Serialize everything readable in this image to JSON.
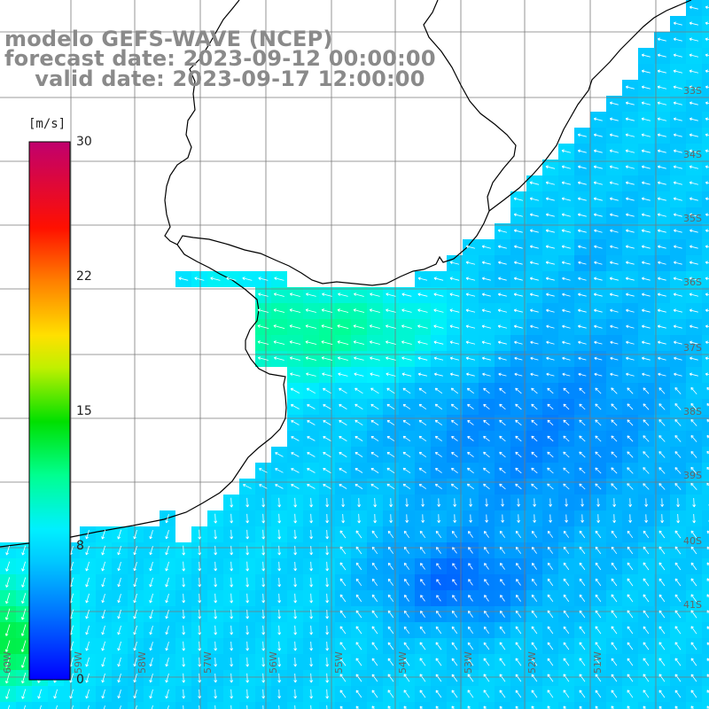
{
  "title": {
    "line1": "modelo GEFS-WAVE (NCEP)",
    "line2": "forecast date: 2023-09-12 00:00:00",
    "line3": "    valid date: 2023-09-17 12:00:00"
  },
  "colorbar": {
    "unit": "[m/s]",
    "ticks": [
      "30",
      "22",
      "15",
      "8",
      "0"
    ],
    "tick_values": [
      30,
      22,
      15,
      8,
      0
    ],
    "min": 0,
    "max": 30,
    "colors": [
      "#0000ff",
      "#0080ff",
      "#00e0ff",
      "#00ff80",
      "#00dd00",
      "#ffff00",
      "#ffa000",
      "#ff3000",
      "#ff0000",
      "#c00070"
    ]
  },
  "map": {
    "field": "wind speed",
    "land_color": "#ffffff",
    "coastline_color": "#000000",
    "gridline_color": "#7a7a7a",
    "arrow_color": "#ffffff",
    "lat_labels": [
      "33S",
      "34S",
      "35S",
      "36S",
      "37S",
      "38S",
      "39S",
      "40S",
      "41S"
    ],
    "lon_labels": [
      "60W",
      "59W",
      "58W",
      "57W",
      "56W",
      "55W",
      "54W",
      "53W",
      "52W",
      "51W"
    ]
  }
}
